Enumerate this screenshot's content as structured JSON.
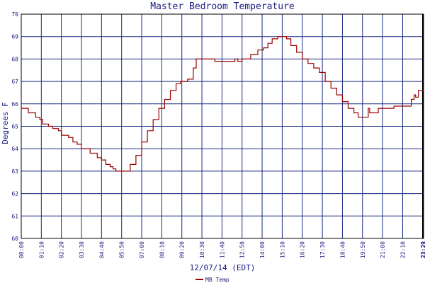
{
  "chart_data": {
    "type": "line",
    "title": "Master Bedroom Temperature",
    "xlabel": "12/07/14 (EDT)",
    "ylabel": "Degrees F",
    "ylim": [
      60,
      70
    ],
    "y_ticks": [
      60,
      61,
      62,
      63,
      64,
      65,
      66,
      67,
      68,
      69,
      70
    ],
    "x_tick_labels": [
      "00:00",
      "01:10",
      "02:20",
      "03:30",
      "04:40",
      "05:50",
      "07:00",
      "08:10",
      "09:20",
      "10:30",
      "11:40",
      "12:50",
      "14:00",
      "15:10",
      "16:20",
      "17:30",
      "18:40",
      "19:50",
      "21:00",
      "22:10",
      "23:20",
      "23:23"
    ],
    "xlim": [
      "00:00",
      "23:23"
    ],
    "grid": true,
    "legend_position": "bottom-left",
    "colors": {
      "series": "#990000",
      "grid": "#1a2a80",
      "axis": "#000000",
      "text": "#1a1a80"
    },
    "series": [
      {
        "name": "MB Temp",
        "points": [
          [
            "00:00",
            65.8
          ],
          [
            "00:20",
            65.8
          ],
          [
            "00:25",
            65.6
          ],
          [
            "00:45",
            65.6
          ],
          [
            "00:50",
            65.4
          ],
          [
            "01:05",
            65.3
          ],
          [
            "01:15",
            65.1
          ],
          [
            "01:35",
            65.0
          ],
          [
            "01:50",
            64.9
          ],
          [
            "02:10",
            64.8
          ],
          [
            "02:20",
            64.6
          ],
          [
            "02:45",
            64.5
          ],
          [
            "03:00",
            64.3
          ],
          [
            "03:15",
            64.2
          ],
          [
            "03:30",
            64.0
          ],
          [
            "03:50",
            64.0
          ],
          [
            "04:00",
            63.8
          ],
          [
            "04:15",
            63.8
          ],
          [
            "04:25",
            63.6
          ],
          [
            "04:40",
            63.5
          ],
          [
            "04:55",
            63.3
          ],
          [
            "05:10",
            63.2
          ],
          [
            "05:20",
            63.1
          ],
          [
            "05:30",
            63.0
          ],
          [
            "05:50",
            63.0
          ],
          [
            "06:05",
            63.0
          ],
          [
            "06:20",
            63.3
          ],
          [
            "06:40",
            63.7
          ],
          [
            "07:00",
            64.3
          ],
          [
            "07:20",
            64.8
          ],
          [
            "07:40",
            65.3
          ],
          [
            "08:00",
            65.8
          ],
          [
            "08:20",
            66.2
          ],
          [
            "08:40",
            66.6
          ],
          [
            "09:00",
            66.9
          ],
          [
            "09:15",
            67.0
          ],
          [
            "09:40",
            67.1
          ],
          [
            "10:00",
            67.6
          ],
          [
            "10:10",
            68.0
          ],
          [
            "10:30",
            68.0
          ],
          [
            "11:10",
            68.0
          ],
          [
            "11:15",
            67.9
          ],
          [
            "11:45",
            67.9
          ],
          [
            "12:20",
            67.9
          ],
          [
            "12:25",
            68.0
          ],
          [
            "12:35",
            67.9
          ],
          [
            "12:50",
            68.0
          ],
          [
            "13:05",
            68.0
          ],
          [
            "13:20",
            68.2
          ],
          [
            "13:45",
            68.4
          ],
          [
            "14:05",
            68.5
          ],
          [
            "14:20",
            68.7
          ],
          [
            "14:35",
            68.9
          ],
          [
            "14:55",
            69.0
          ],
          [
            "15:10",
            69.0
          ],
          [
            "15:25",
            68.9
          ],
          [
            "15:40",
            68.6
          ],
          [
            "16:00",
            68.3
          ],
          [
            "16:20",
            68.0
          ],
          [
            "16:40",
            67.8
          ],
          [
            "17:00",
            67.6
          ],
          [
            "17:20",
            67.4
          ],
          [
            "17:40",
            67.0
          ],
          [
            "18:00",
            66.7
          ],
          [
            "18:20",
            66.4
          ],
          [
            "18:40",
            66.1
          ],
          [
            "19:00",
            65.8
          ],
          [
            "19:20",
            65.6
          ],
          [
            "19:35",
            65.4
          ],
          [
            "19:50",
            65.4
          ],
          [
            "20:00",
            65.4
          ],
          [
            "20:10",
            65.8
          ],
          [
            "20:15",
            65.6
          ],
          [
            "20:30",
            65.6
          ],
          [
            "20:45",
            65.8
          ],
          [
            "21:00",
            65.8
          ],
          [
            "21:40",
            65.9
          ],
          [
            "22:00",
            65.9
          ],
          [
            "22:30",
            65.9
          ],
          [
            "22:40",
            66.2
          ],
          [
            "22:50",
            66.4
          ],
          [
            "22:55",
            66.3
          ],
          [
            "23:05",
            66.6
          ],
          [
            "23:15",
            66.6
          ],
          [
            "23:23",
            66.6
          ]
        ]
      }
    ]
  }
}
